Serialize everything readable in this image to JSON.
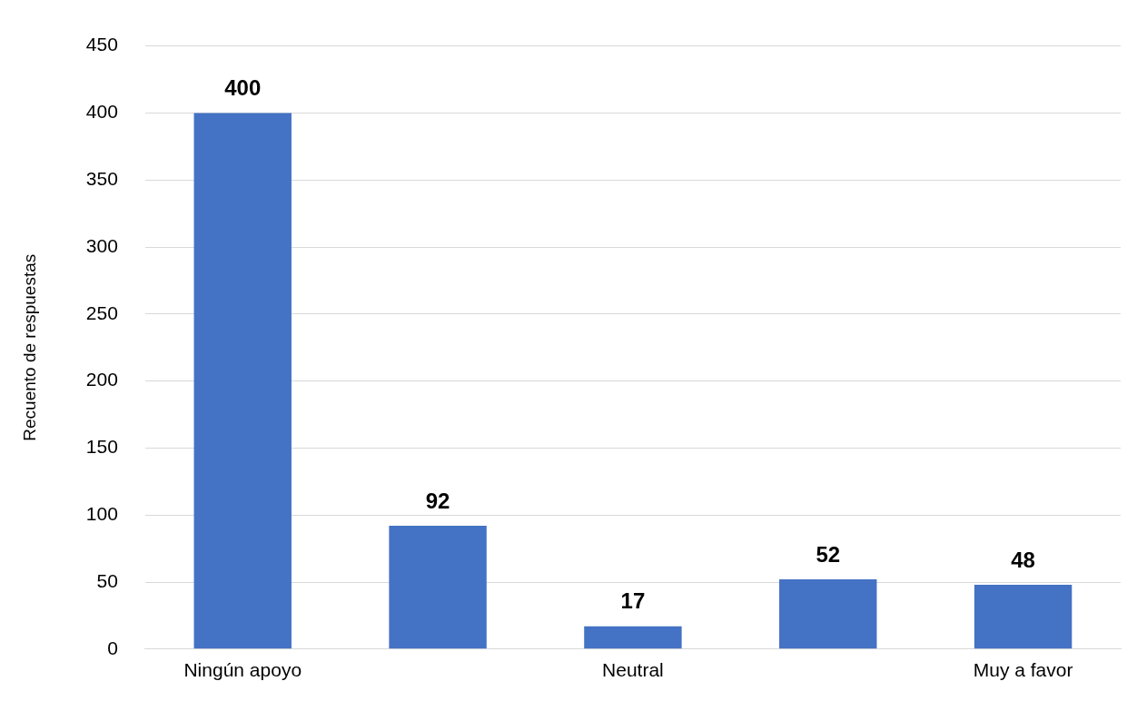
{
  "chart_data": {
    "type": "bar",
    "ylabel": "Recuento de respuestas",
    "categories": [
      "Ningún apoyo",
      null,
      "Neutral",
      null,
      "Muy a favor"
    ],
    "values": [
      400,
      92,
      17,
      52,
      48
    ],
    "color": "#4472c4",
    "ylim": [
      0,
      450
    ],
    "yticks": [
      0,
      50,
      100,
      150,
      200,
      250,
      300,
      350,
      400,
      450
    ],
    "grid": "y",
    "data_labels": true,
    "legend": false
  }
}
